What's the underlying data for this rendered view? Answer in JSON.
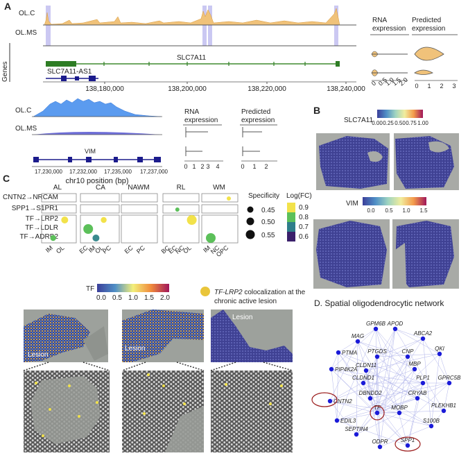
{
  "figure": {
    "panels": {
      "A": "A",
      "B": "B",
      "C": "C",
      "D": "D. Spatial oligodendrocytic network"
    },
    "panel_a": {
      "track_labels": [
        "OL.C",
        "OL.MS"
      ],
      "genes_label": "Genes",
      "gene_main": "SLC7A11",
      "gene_antisense": "SLC7A11-AS1",
      "x_ticks": [
        "138,180,000",
        "138,200,000",
        "138,220,000",
        "138,240,000"
      ],
      "rna_title": "RNA expression",
      "pred_title": "Predicted expression",
      "rna_ticks": [
        "0",
        "0.5",
        "1.0",
        "1.5",
        "2.0"
      ],
      "pred_ticks": [
        "0",
        "1",
        "2",
        "3"
      ],
      "vim_track_labels": [
        "OL.C",
        "OL.MS"
      ],
      "vim_gene": "VIM",
      "vim_x_ticks": [
        "17,230,000",
        "17,232,000",
        "17,235,000",
        "17,237,000"
      ],
      "vim_x_label": "chr10 position (bp)",
      "vim_rna_title": "RNA expression",
      "vim_pred_title": "Predicted expression",
      "vim_rna_ticks": [
        "0",
        "1",
        "2",
        "3",
        "4"
      ],
      "vim_pred_ticks": [
        "0",
        "1",
        "2"
      ]
    },
    "panel_b": {
      "gene1": "SLC7A11",
      "gene1_ticks": [
        "0.00",
        "0.25",
        "0.50",
        "0.75",
        "1.00"
      ],
      "gene2": "VIM",
      "gene2_ticks": [
        "0.0",
        "0.5",
        "1.0",
        "1.5"
      ]
    },
    "panel_c": {
      "regions": [
        "AL",
        "CA",
        "NAWM",
        "RL",
        "WM"
      ],
      "interactions": [
        "CNTN2→NRCAM",
        "SPP1→S1PR1",
        "TF→LRP2",
        "TF→LDLR",
        "TF→ADRB2"
      ],
      "x_labels": [
        [
          "IM",
          "OL"
        ],
        [
          "EC",
          "IM",
          "OL",
          "PC"
        ],
        [
          "EC",
          "PC"
        ],
        [
          "BC",
          "EC",
          "NC",
          "OL"
        ],
        [
          "IM",
          "NC",
          "OPC"
        ]
      ],
      "specificity_title": "Specificity",
      "specificity_values": [
        "0.45",
        "0.50",
        "0.55"
      ],
      "logfc_title": "Log(FC)",
      "logfc_values": [
        "0.9",
        "0.8",
        "0.7",
        "0.6"
      ],
      "dots": [
        {
          "region": "WM",
          "cell": "OPC",
          "row": 0,
          "color": "#f2e24a",
          "spec": 0.45
        },
        {
          "region": "RL",
          "cell": "EC",
          "row": 1,
          "color": "#5cc05a",
          "spec": 0.45
        },
        {
          "region": "AL",
          "cell": "OL",
          "row": 2,
          "color": "#f2e24a",
          "spec": 0.5
        },
        {
          "region": "CA",
          "cell": "OL",
          "row": 2,
          "color": "#f2e24a",
          "spec": 0.48
        },
        {
          "region": "RL",
          "cell": "OL",
          "row": 2,
          "color": "#f2e24a",
          "spec": 0.55
        },
        {
          "region": "CA",
          "cell": "EC",
          "row": 3,
          "color": "#5cc05a",
          "spec": 0.55
        },
        {
          "region": "CA",
          "cell": "IM",
          "row": 4,
          "color": "#3a8a8e",
          "spec": 0.5
        },
        {
          "region": "AL",
          "cell": "IM",
          "row": 4,
          "color": "#5cc05a",
          "spec": 0.48
        },
        {
          "region": "WM",
          "cell": "IM",
          "row": 4,
          "color": "#5cc05a",
          "spec": 0.55
        }
      ],
      "tf_label": "TF",
      "tf_ticks": [
        "0.0",
        "0.5",
        "1.0",
        "1.5",
        "2.0"
      ],
      "coloc_label_gene": "TF-LRP2",
      "coloc_label_rest": " colocalization at the",
      "coloc_label_line2": "chronic active lesion",
      "lesion_label": "Lesion"
    },
    "panel_d": {
      "nodes": [
        "GPM6B",
        "APOD",
        "MAG",
        "ABCA2",
        "PTMA",
        "PTGDS",
        "CNP",
        "QKI",
        "PIP4K2A",
        "CLDN11",
        "MBP",
        "CLDND1",
        "PLP1",
        "GPRC5B",
        "CNTN2",
        "DBNDD2",
        "CRYAB",
        "TF",
        "MOBP",
        "PLEKHB1",
        "EDIL3",
        "S100B",
        "SEPTIN4",
        "ODPR",
        "SPP1"
      ],
      "highlighted": [
        "CNTN2",
        "TF",
        "SPP1"
      ]
    }
  }
}
